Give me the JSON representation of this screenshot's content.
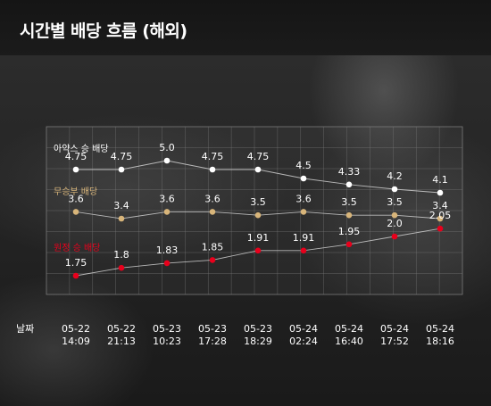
{
  "title": "시간별 배당 흐름 (해외)",
  "colors": {
    "background": "#1e1e1e",
    "grid": "#7a7a7a",
    "ajax_win": "#ffffff",
    "draw": "#d8b57a",
    "loss_marker": "#e8001c",
    "loss_label": "#e8001c",
    "line": "#d0d0d0",
    "text": "#ffffff"
  },
  "chart_data": {
    "type": "line",
    "xlabel": "날짜",
    "categories": [
      [
        "05-22",
        "14:09"
      ],
      [
        "05-22",
        "21:13"
      ],
      [
        "05-23",
        "10:23"
      ],
      [
        "05-23",
        "17:28"
      ],
      [
        "05-23",
        "18:29"
      ],
      [
        "05-24",
        "02:24"
      ],
      [
        "05-24",
        "16:40"
      ],
      [
        "05-24",
        "17:52"
      ],
      [
        "05-24",
        "18:16"
      ]
    ],
    "series": [
      {
        "name": "아약스 승 배당",
        "values": [
          4.75,
          4.75,
          5.0,
          4.75,
          4.75,
          4.5,
          4.33,
          4.2,
          4.1
        ],
        "labels": [
          "4.75",
          "4.75",
          "5.0",
          "4.75",
          "4.75",
          "4.5",
          "4.33",
          "4.2",
          "4.1"
        ],
        "marker_color": "#ffffff",
        "label_color": "#ffffff"
      },
      {
        "name": "무승부 배당",
        "values": [
          3.6,
          3.4,
          3.6,
          3.6,
          3.5,
          3.6,
          3.5,
          3.5,
          3.4
        ],
        "labels": [
          "3.6",
          "3.4",
          "3.6",
          "3.6",
          "3.5",
          "3.6",
          "3.5",
          "3.5",
          "3.4"
        ],
        "marker_color": "#d8b57a",
        "label_color": "#ffffff",
        "name_color": "#d8b57a"
      },
      {
        "name": "원정 승 배당",
        "values": [
          1.75,
          1.8,
          1.83,
          1.85,
          1.91,
          1.91,
          1.95,
          2.0,
          2.05
        ],
        "labels": [
          "1.75",
          "1.8",
          "1.83",
          "1.85",
          "1.91",
          "1.91",
          "1.95",
          "2.0",
          "2.05"
        ],
        "marker_color": "#e8001c",
        "label_color": "#ffffff",
        "name_color": "#e8001c"
      }
    ]
  }
}
